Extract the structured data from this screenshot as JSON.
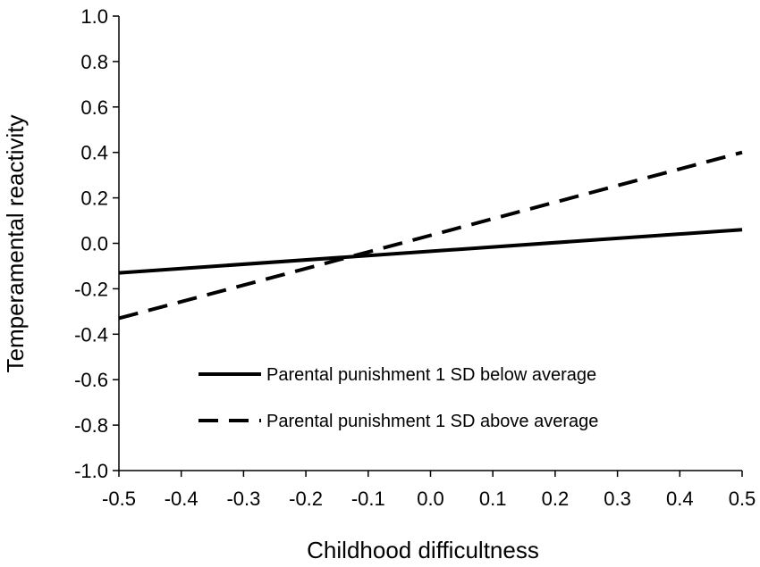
{
  "chart_data": {
    "type": "line",
    "xlabel": "Childhood difficultness",
    "ylabel": "Temperamental reactivity",
    "xlim": [
      -0.5,
      0.5
    ],
    "ylim": [
      -1.0,
      1.0
    ],
    "x_ticks": [
      "-0.5",
      "-0.4",
      "-0.3",
      "-0.2",
      "-0.1",
      "0.0",
      "0.1",
      "0.2",
      "0.3",
      "0.4",
      "0.5"
    ],
    "y_ticks": [
      "1.0",
      "0.8",
      "0.6",
      "0.4",
      "0.2",
      "0.0",
      "-0.2",
      "-0.4",
      "-0.6",
      "-0.8",
      "-1.0"
    ],
    "grid": false,
    "legend_position": "lower-center",
    "series": [
      {
        "name": "Parental punishment 1 SD below average",
        "style": "solid",
        "color": "#000000",
        "x": [
          -0.5,
          0.5
        ],
        "y": [
          -0.13,
          0.06
        ]
      },
      {
        "name": "Parental punishment 1 SD above average",
        "style": "dashed",
        "color": "#000000",
        "x": [
          -0.5,
          0.5
        ],
        "y": [
          -0.33,
          0.4
        ]
      }
    ]
  }
}
